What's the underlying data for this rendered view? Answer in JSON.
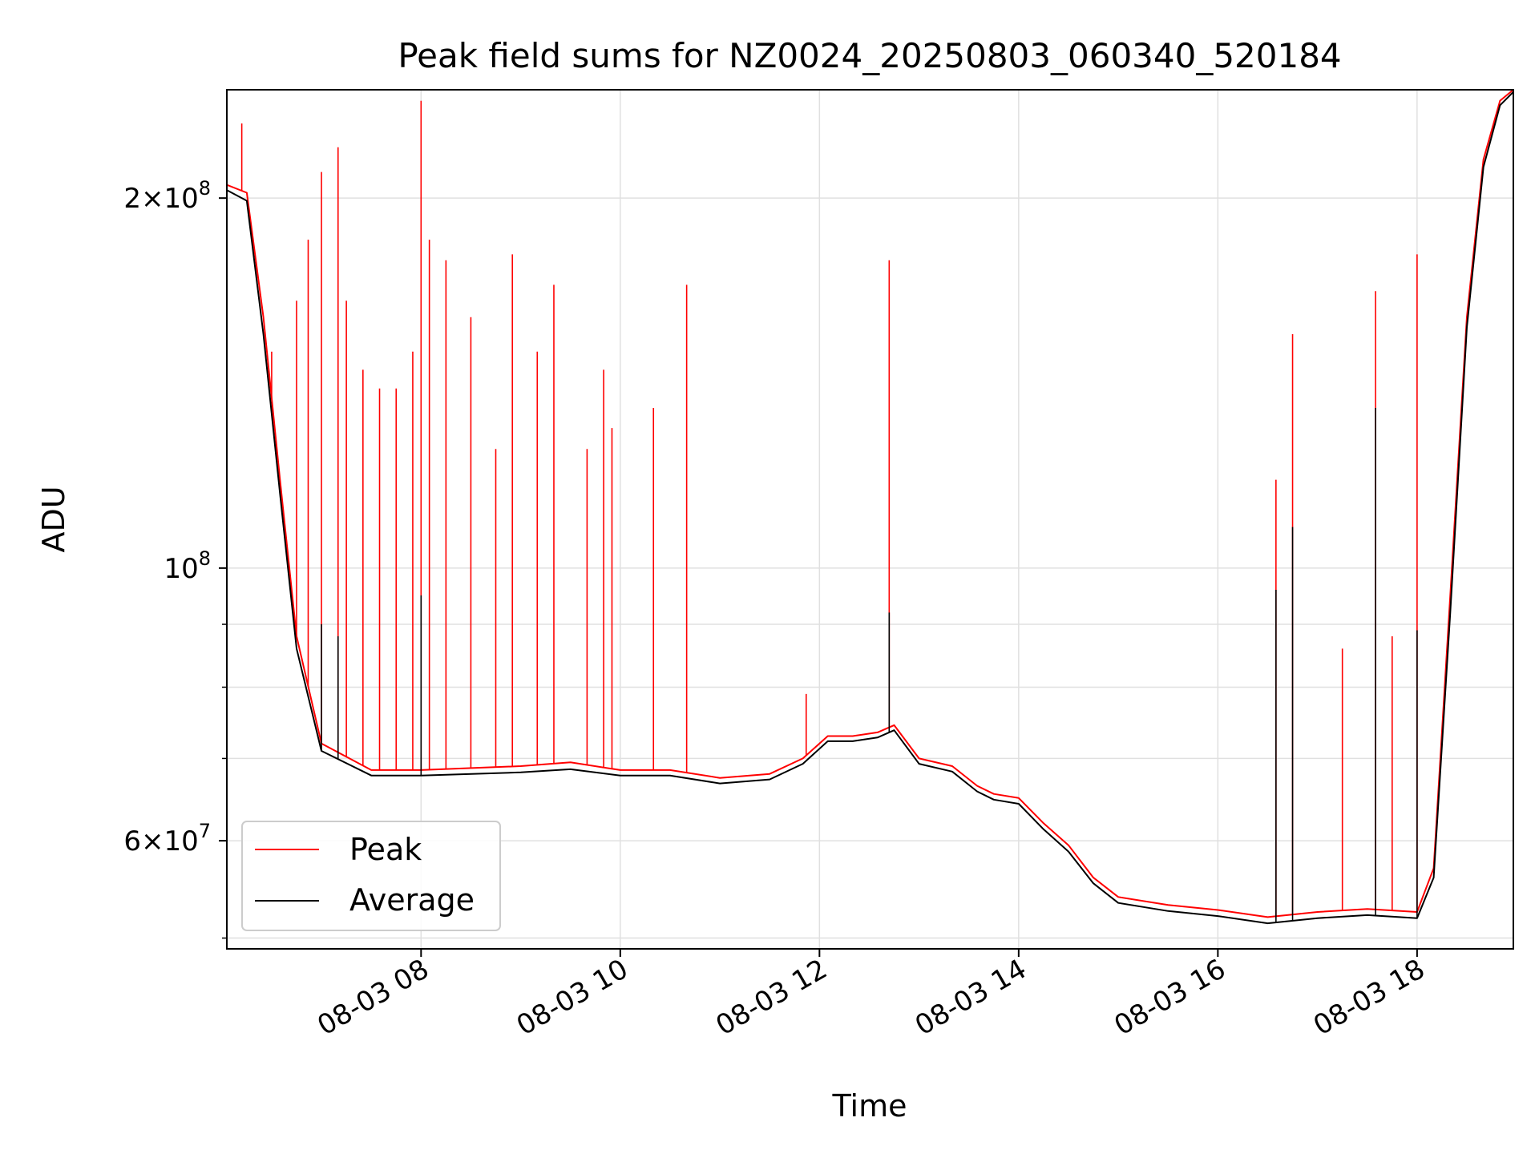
{
  "chart_data": {
    "type": "line",
    "title": "Peak field sums for NZ0024_20250803_060340_520184",
    "xlabel": "Time",
    "ylabel": "ADU",
    "y_scale": "log",
    "ylim": [
      49000000,
      245000000
    ],
    "xlim": [
      "08-03 06:03",
      "08-03 18:58"
    ],
    "grid": true,
    "legend_position": "lower-left",
    "x_ticks": [
      "08-03 08",
      "08-03 10",
      "08-03 12",
      "08-03 14",
      "08-03 16",
      "08-03 18"
    ],
    "y_ticks_major": [
      {
        "value": 60000000,
        "mantissa": "6",
        "exponent": "7"
      },
      {
        "value": 100000000,
        "mantissa": "",
        "exponent": "8"
      },
      {
        "value": 200000000,
        "mantissa": "2",
        "exponent": "8"
      }
    ],
    "y_ticks_minor": [
      50000000,
      70000000,
      80000000,
      90000000
    ],
    "colors": {
      "peak": "#ff0000",
      "average": "#000000",
      "grid": "#e0e0e0"
    },
    "series": [
      {
        "name": "Peak",
        "color": "#ff0000",
        "points": [
          [
            "08-03 06:03",
            205000000
          ],
          [
            "08-03 06:15",
            202000000
          ],
          [
            "08-03 06:25",
            160000000
          ],
          [
            "08-03 06:35",
            118000000
          ],
          [
            "08-03 06:45",
            88000000
          ],
          [
            "08-03 07:00",
            72000000
          ],
          [
            "08-03 07:30",
            68500000
          ],
          [
            "08-03 08:00",
            68500000
          ],
          [
            "08-03 09:00",
            69000000
          ],
          [
            "08-03 09:30",
            69500000
          ],
          [
            "08-03 10:00",
            68500000
          ],
          [
            "08-03 10:30",
            68500000
          ],
          [
            "08-03 11:00",
            67500000
          ],
          [
            "08-03 11:30",
            68000000
          ],
          [
            "08-03 11:50",
            70000000
          ],
          [
            "08-03 12:05",
            73000000
          ],
          [
            "08-03 12:20",
            73000000
          ],
          [
            "08-03 12:35",
            73500000
          ],
          [
            "08-03 12:45",
            74500000
          ],
          [
            "08-03 13:00",
            70000000
          ],
          [
            "08-03 13:20",
            69000000
          ],
          [
            "08-03 13:35",
            66500000
          ],
          [
            "08-03 13:45",
            65500000
          ],
          [
            "08-03 14:00",
            65000000
          ],
          [
            "08-03 14:15",
            62000000
          ],
          [
            "08-03 14:30",
            59500000
          ],
          [
            "08-03 14:45",
            56000000
          ],
          [
            "08-03 15:00",
            54000000
          ],
          [
            "08-03 15:30",
            53200000
          ],
          [
            "08-03 16:00",
            52700000
          ],
          [
            "08-03 16:30",
            52000000
          ],
          [
            "08-03 17:00",
            52500000
          ],
          [
            "08-03 17:30",
            52800000
          ],
          [
            "08-03 18:00",
            52500000
          ],
          [
            "08-03 18:10",
            57000000
          ],
          [
            "08-03 18:20",
            95000000
          ],
          [
            "08-03 18:30",
            160000000
          ],
          [
            "08-03 18:40",
            215000000
          ],
          [
            "08-03 18:50",
            240000000
          ],
          [
            "08-03 18:58",
            245000000
          ]
        ],
        "spikes": [
          [
            "08-03 06:12",
            230000000
          ],
          [
            "08-03 06:30",
            150000000
          ],
          [
            "08-03 06:45",
            165000000
          ],
          [
            "08-03 06:52",
            185000000
          ],
          [
            "08-03 07:00",
            210000000
          ],
          [
            "08-03 07:10",
            220000000
          ],
          [
            "08-03 07:15",
            165000000
          ],
          [
            "08-03 07:25",
            145000000
          ],
          [
            "08-03 07:35",
            140000000
          ],
          [
            "08-03 07:45",
            140000000
          ],
          [
            "08-03 07:55",
            150000000
          ],
          [
            "08-03 08:00",
            240000000
          ],
          [
            "08-03 08:05",
            185000000
          ],
          [
            "08-03 08:15",
            178000000
          ],
          [
            "08-03 08:30",
            160000000
          ],
          [
            "08-03 08:45",
            125000000
          ],
          [
            "08-03 08:55",
            180000000
          ],
          [
            "08-03 09:10",
            150000000
          ],
          [
            "08-03 09:20",
            170000000
          ],
          [
            "08-03 09:40",
            125000000
          ],
          [
            "08-03 09:50",
            145000000
          ],
          [
            "08-03 09:55",
            130000000
          ],
          [
            "08-03 10:20",
            135000000
          ],
          [
            "08-03 10:40",
            170000000
          ],
          [
            "08-03 11:52",
            79000000
          ],
          [
            "08-03 12:42",
            178000000
          ],
          [
            "08-03 16:35",
            118000000
          ],
          [
            "08-03 16:45",
            155000000
          ],
          [
            "08-03 17:15",
            86000000
          ],
          [
            "08-03 17:35",
            168000000
          ],
          [
            "08-03 17:45",
            88000000
          ],
          [
            "08-03 18:00",
            180000000
          ]
        ]
      },
      {
        "name": "Average",
        "color": "#000000",
        "points": [
          [
            "08-03 06:03",
            203000000
          ],
          [
            "08-03 06:15",
            199000000
          ],
          [
            "08-03 06:25",
            155000000
          ],
          [
            "08-03 06:35",
            115000000
          ],
          [
            "08-03 06:45",
            86000000
          ],
          [
            "08-03 07:00",
            71000000
          ],
          [
            "08-03 07:30",
            67800000
          ],
          [
            "08-03 08:00",
            67800000
          ],
          [
            "08-03 09:00",
            68200000
          ],
          [
            "08-03 09:30",
            68600000
          ],
          [
            "08-03 10:00",
            67800000
          ],
          [
            "08-03 10:30",
            67800000
          ],
          [
            "08-03 11:00",
            66800000
          ],
          [
            "08-03 11:30",
            67300000
          ],
          [
            "08-03 11:50",
            69300000
          ],
          [
            "08-03 12:05",
            72300000
          ],
          [
            "08-03 12:20",
            72300000
          ],
          [
            "08-03 12:35",
            72800000
          ],
          [
            "08-03 12:45",
            73800000
          ],
          [
            "08-03 13:00",
            69300000
          ],
          [
            "08-03 13:20",
            68300000
          ],
          [
            "08-03 13:35",
            65800000
          ],
          [
            "08-03 13:45",
            64800000
          ],
          [
            "08-03 14:00",
            64300000
          ],
          [
            "08-03 14:15",
            61300000
          ],
          [
            "08-03 14:30",
            58800000
          ],
          [
            "08-03 14:45",
            55400000
          ],
          [
            "08-03 15:00",
            53400000
          ],
          [
            "08-03 15:30",
            52600000
          ],
          [
            "08-03 16:00",
            52100000
          ],
          [
            "08-03 16:30",
            51400000
          ],
          [
            "08-03 17:00",
            51900000
          ],
          [
            "08-03 17:30",
            52200000
          ],
          [
            "08-03 18:00",
            51900000
          ],
          [
            "08-03 18:10",
            56000000
          ],
          [
            "08-03 18:20",
            92000000
          ],
          [
            "08-03 18:30",
            157000000
          ],
          [
            "08-03 18:40",
            212000000
          ],
          [
            "08-03 18:50",
            238000000
          ],
          [
            "08-03 18:58",
            244000000
          ]
        ],
        "spikes": [
          [
            "08-03 07:00",
            90000000
          ],
          [
            "08-03 07:10",
            88000000
          ],
          [
            "08-03 08:00",
            95000000
          ],
          [
            "08-03 12:42",
            92000000
          ],
          [
            "08-03 16:35",
            96000000
          ],
          [
            "08-03 16:45",
            108000000
          ],
          [
            "08-03 17:35",
            135000000
          ],
          [
            "08-03 18:00",
            89000000
          ]
        ]
      }
    ]
  }
}
